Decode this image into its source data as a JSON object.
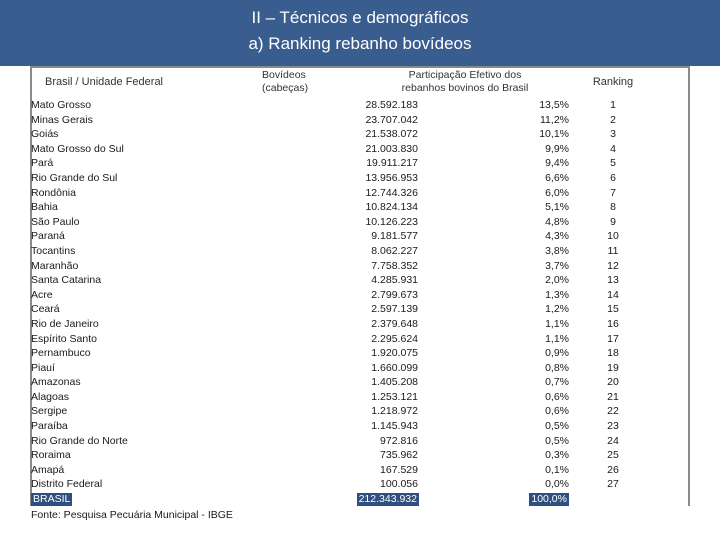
{
  "title": {
    "line1": "II – Técnicos e demográficos",
    "line2": "a) Ranking rebanho bovídeos"
  },
  "headers": {
    "state": "Brasil / Unidade Federal",
    "herd": "Bovídeos (cabeças)",
    "share": "Participação Efetivo dos rebanhos bovinos do Brasil",
    "rank": "Ranking"
  },
  "rows": [
    {
      "state": "Mato Grosso",
      "herd": "28.592.183",
      "share": "13,5%",
      "rank": "1"
    },
    {
      "state": "Minas Gerais",
      "herd": "23.707.042",
      "share": "11,2%",
      "rank": "2"
    },
    {
      "state": "Goiás",
      "herd": "21.538.072",
      "share": "10,1%",
      "rank": "3"
    },
    {
      "state": "Mato Grosso do Sul",
      "herd": "21.003.830",
      "share": "9,9%",
      "rank": "4"
    },
    {
      "state": "Pará",
      "herd": "19.911.217",
      "share": "9,4%",
      "rank": "5"
    },
    {
      "state": "Rio Grande do Sul",
      "herd": "13.956.953",
      "share": "6,6%",
      "rank": "6"
    },
    {
      "state": "Rondônia",
      "herd": "12.744.326",
      "share": "6,0%",
      "rank": "7"
    },
    {
      "state": "Bahia",
      "herd": "10.824.134",
      "share": "5,1%",
      "rank": "8"
    },
    {
      "state": "São Paulo",
      "herd": "10.126.223",
      "share": "4,8%",
      "rank": "9"
    },
    {
      "state": "Paraná",
      "herd": "9.181.577",
      "share": "4,3%",
      "rank": "10"
    },
    {
      "state": "Tocantins",
      "herd": "8.062.227",
      "share": "3,8%",
      "rank": "11"
    },
    {
      "state": "Maranhão",
      "herd": "7.758.352",
      "share": "3,7%",
      "rank": "12"
    },
    {
      "state": "Santa Catarina",
      "herd": "4.285.931",
      "share": "2,0%",
      "rank": "13"
    },
    {
      "state": "Acre",
      "herd": "2.799.673",
      "share": "1,3%",
      "rank": "14"
    },
    {
      "state": "Ceará",
      "herd": "2.597.139",
      "share": "1,2%",
      "rank": "15"
    },
    {
      "state": "Rio de Janeiro",
      "herd": "2.379.648",
      "share": "1,1%",
      "rank": "16"
    },
    {
      "state": "Espírito Santo",
      "herd": "2.295.624",
      "share": "1,1%",
      "rank": "17"
    },
    {
      "state": "Pernambuco",
      "herd": "1.920.075",
      "share": "0,9%",
      "rank": "18"
    },
    {
      "state": "Piauí",
      "herd": "1.660.099",
      "share": "0,8%",
      "rank": "19"
    },
    {
      "state": "Amazonas",
      "herd": "1.405.208",
      "share": "0,7%",
      "rank": "20"
    },
    {
      "state": "Alagoas",
      "herd": "1.253.121",
      "share": "0,6%",
      "rank": "21"
    },
    {
      "state": "Sergipe",
      "herd": "1.218.972",
      "share": "0,6%",
      "rank": "22"
    },
    {
      "state": "Paraíba",
      "herd": "1.145.943",
      "share": "0,5%",
      "rank": "23"
    },
    {
      "state": "Rio Grande do Norte",
      "herd": "972.816",
      "share": "0,5%",
      "rank": "24"
    },
    {
      "state": "Roraima",
      "herd": "735.962",
      "share": "0,3%",
      "rank": "25"
    },
    {
      "state": "Amapá",
      "herd": "167.529",
      "share": "0,1%",
      "rank": "26"
    },
    {
      "state": "Distrito Federal",
      "herd": "100.056",
      "share": "0,0%",
      "rank": "27"
    }
  ],
  "total": {
    "state": "BRASIL",
    "herd": "212.343.932",
    "share": "100,0%"
  },
  "source": "Fonte: Pesquisa Pecuária Municipal - IBGE",
  "colors": {
    "banner": "#3a5d8f",
    "total_highlight": "#2e4f80"
  }
}
